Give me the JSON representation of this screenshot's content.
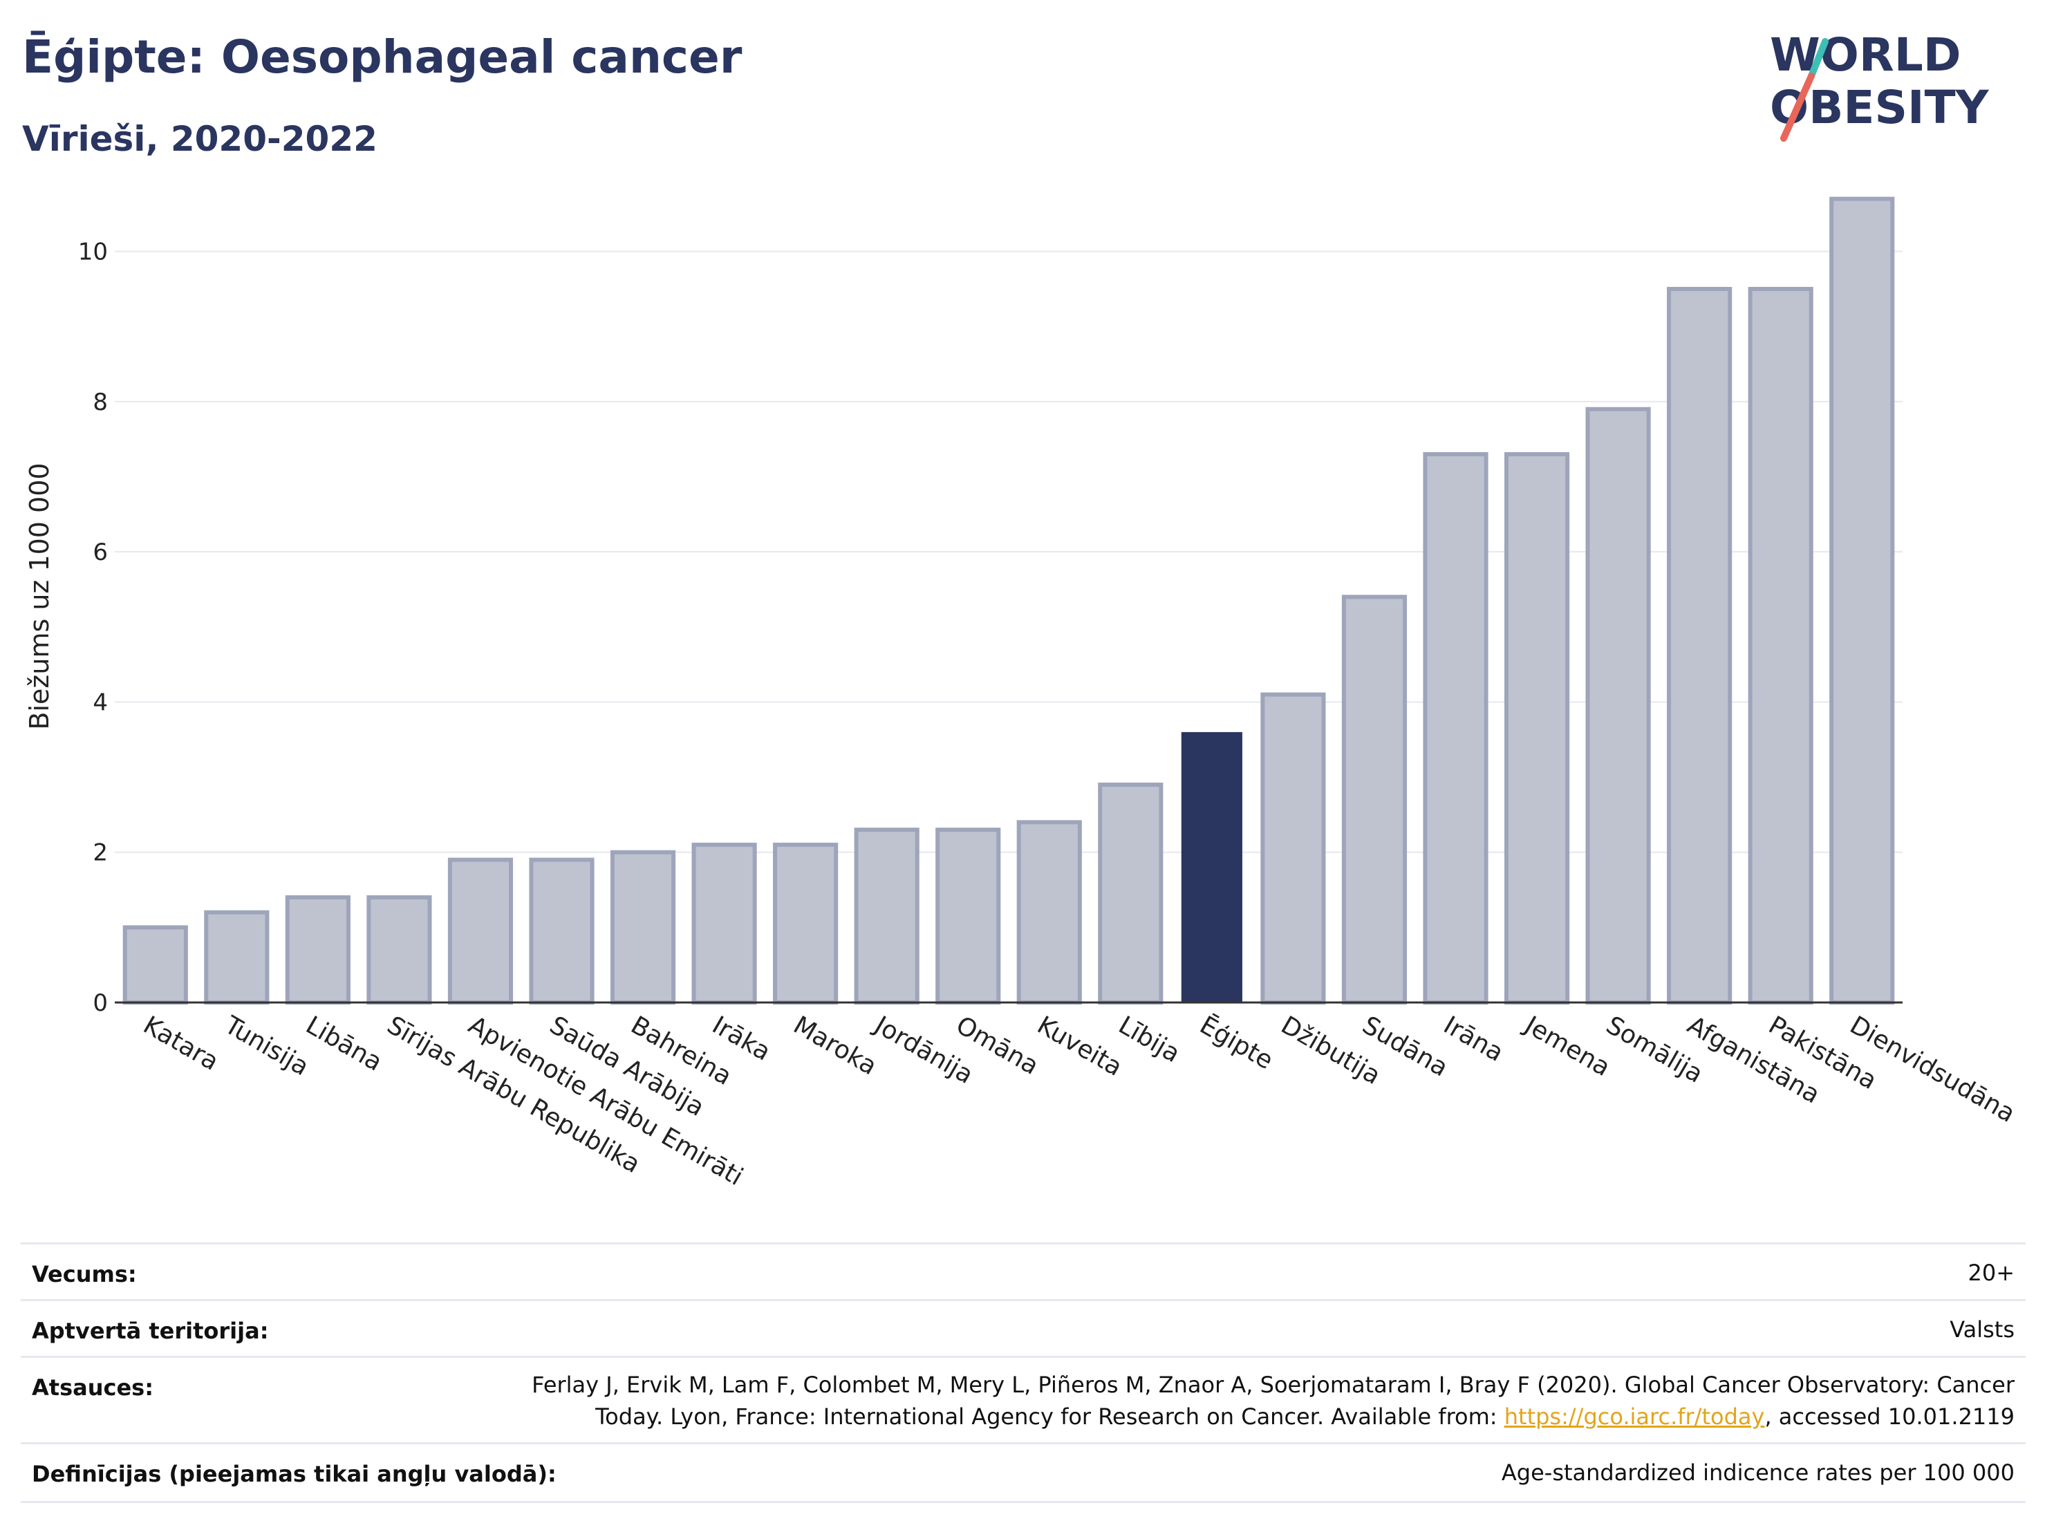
{
  "title": "Ēģipte: Oesophageal cancer",
  "subtitle": "Vīrieši, 2020-2022",
  "logo": {
    "line1": "WORLD",
    "line2": "OBESITY"
  },
  "colors": {
    "highlight": "#2a3560",
    "bar_fill": "#bfc3d0",
    "bar_stroke": "#9ea5bb",
    "grid": "#e6e8ef",
    "accent_teal": "#3dbfb5",
    "accent_red": "#e8665a",
    "link": "#e3a41b"
  },
  "chart_data": {
    "type": "bar",
    "ylabel": "Biežums uz 100 000",
    "xlabel": "",
    "ylim": [
      0,
      11
    ],
    "yticks": [
      0,
      2,
      4,
      6,
      8,
      10
    ],
    "grid": true,
    "highlight": "Ēģipte",
    "categories": [
      "Katara",
      "Tunisija",
      "Libāna",
      "Sīrijas Arābu Republika",
      "Apvienotie Arābu Emirāti",
      "Saūda Arābija",
      "Bahreina",
      "Irāka",
      "Maroka",
      "Jordānija",
      "Omāna",
      "Kuveita",
      "Lībija",
      "Ēģipte",
      "Džibutija",
      "Sudāna",
      "Irāna",
      "Jemena",
      "Somālija",
      "Afganistāna",
      "Pakistāna",
      "Dienvidsudāna"
    ],
    "values": [
      1.0,
      1.2,
      1.4,
      1.4,
      1.9,
      1.9,
      2.0,
      2.1,
      2.1,
      2.3,
      2.3,
      2.4,
      2.9,
      3.6,
      4.1,
      5.4,
      7.3,
      7.3,
      7.9,
      9.5,
      9.5,
      10.7
    ]
  },
  "meta": {
    "age_label": "Vecums:",
    "age_value": "20+",
    "coverage_label": "Aptvertā teritorija:",
    "coverage_value": "Valsts",
    "refs_label": "Atsauces:",
    "refs_line1": "Ferlay J, Ervik M, Lam F, Colombet M, Mery L, Piñeros M, Znaor A, Soerjomataram I, Bray F (2020). Global Cancer Observatory: Cancer",
    "refs_line2_pre": "Today. Lyon, France: International Agency for Research on Cancer. Available from: ",
    "refs_link": "https://gco.iarc.fr/today",
    "refs_line2_post": ", accessed 10.01.2119",
    "defs_label": "Definīcijas (pieejamas tikai angļu valodā):",
    "defs_value": "Age-standardized indicence rates per 100 000"
  }
}
